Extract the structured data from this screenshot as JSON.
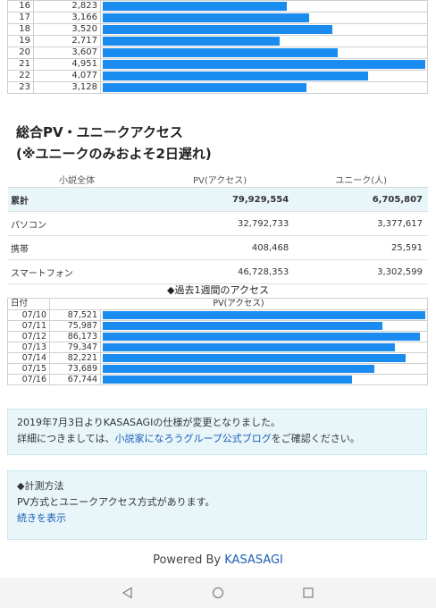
{
  "hourly": {
    "max": 4951,
    "rows": [
      {
        "hour": "16",
        "pv": "2,823",
        "value": 2823
      },
      {
        "hour": "17",
        "pv": "3,166",
        "value": 3166
      },
      {
        "hour": "18",
        "pv": "3,520",
        "value": 3520
      },
      {
        "hour": "19",
        "pv": "2,717",
        "value": 2717
      },
      {
        "hour": "20",
        "pv": "3,607",
        "value": 3607
      },
      {
        "hour": "21",
        "pv": "4,951",
        "value": 4951
      },
      {
        "hour": "22",
        "pv": "4,077",
        "value": 4077
      },
      {
        "hour": "23",
        "pv": "3,128",
        "value": 3128
      }
    ]
  },
  "summary": {
    "title_line1": "総合PV・ユニークアクセス",
    "title_line2": "(※ユニークのみおよそ2日遅れ)",
    "headers": {
      "col1": "小説全体",
      "col2": "PV(アクセス)",
      "col3": "ユニーク(人)"
    },
    "rows": [
      {
        "label": "累計",
        "pv": "79,929,554",
        "unique": "6,705,807"
      },
      {
        "label": "パソコン",
        "pv": "32,792,733",
        "unique": "3,377,617"
      },
      {
        "label": "携帯",
        "pv": "408,468",
        "unique": "25,591"
      },
      {
        "label": "スマートフォン",
        "pv": "46,728,353",
        "unique": "3,302,599"
      }
    ]
  },
  "weekly": {
    "title": "◆過去1週間のアクセス",
    "headers": {
      "date": "日付",
      "pv": "PV(アクセス)"
    },
    "max": 87521,
    "rows": [
      {
        "date": "07/10",
        "pv": "87,521",
        "value": 87521
      },
      {
        "date": "07/11",
        "pv": "75,987",
        "value": 75987
      },
      {
        "date": "07/12",
        "pv": "86,173",
        "value": 86173
      },
      {
        "date": "07/13",
        "pv": "79,347",
        "value": 79347
      },
      {
        "date": "07/14",
        "pv": "82,221",
        "value": 82221
      },
      {
        "date": "07/15",
        "pv": "73,689",
        "value": 73689
      },
      {
        "date": "07/16",
        "pv": "67,744",
        "value": 67744
      }
    ]
  },
  "notice": {
    "line1": "2019年7月3日よりKASASAGIの仕様が変更となりました。",
    "line2_prefix": "詳細につきましては、",
    "line2_link": "小説家になろうグループ公式ブログ",
    "line2_suffix": "をご確認ください。"
  },
  "method": {
    "title": "◆計測方法",
    "text": "PV方式とユニークアクセス方式があります。",
    "more_link": "続きを表示"
  },
  "footer": {
    "prefix": "Powered By ",
    "brand": "KASASAGI"
  },
  "colors": {
    "bar": "#1a8cf0",
    "link": "#1a5fb4",
    "highlight": "#e8f6fa"
  },
  "navbar": {
    "icons": [
      "back-triangle-icon",
      "home-circle-icon",
      "recents-square-icon"
    ]
  }
}
